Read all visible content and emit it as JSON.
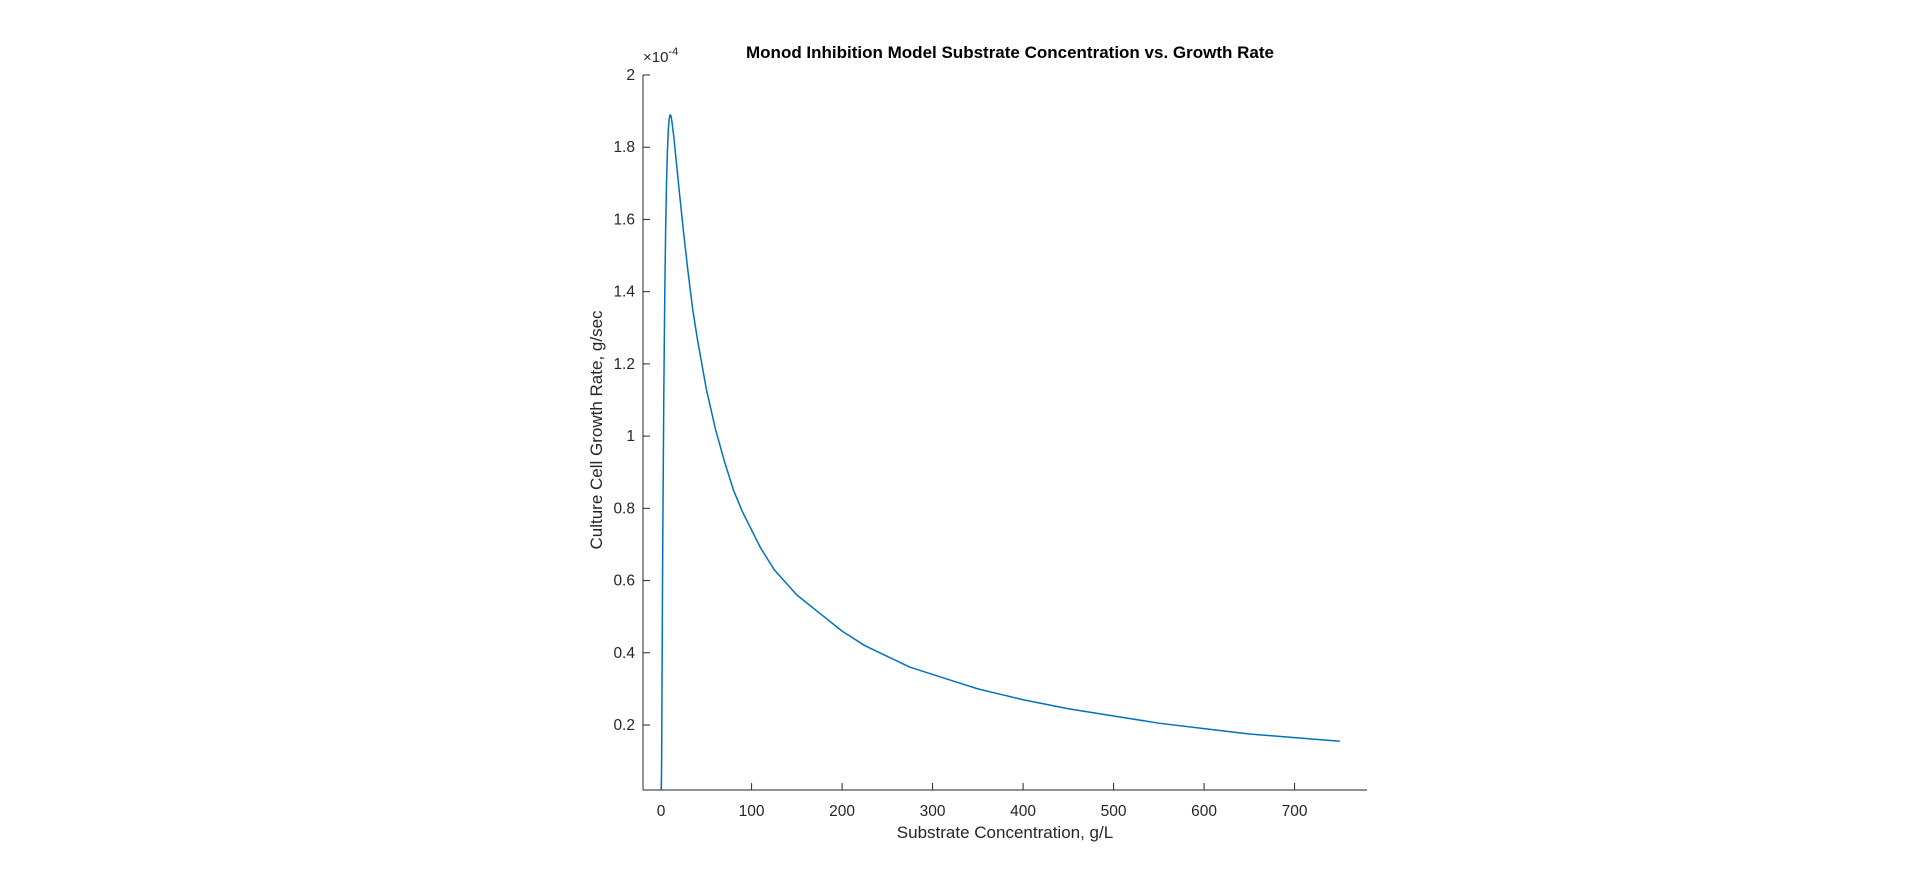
{
  "chart_data": {
    "type": "line",
    "title": "Monod Inhibition Model Substrate Concentration vs. Growth Rate",
    "xlabel": "Substrate Concentration, g/L",
    "ylabel": "Culture Cell Growth Rate, g/sec",
    "y_exponent_label": "×10",
    "y_exponent_power": "-4",
    "xlim": [
      -20,
      780
    ],
    "ylim": [
      0.02,
      2.0
    ],
    "xticks": [
      0,
      100,
      200,
      300,
      400,
      500,
      600,
      700
    ],
    "xtick_labels": [
      "0",
      "100",
      "200",
      "300",
      "400",
      "500",
      "600",
      "700"
    ],
    "yticks": [
      0.2,
      0.4,
      0.6,
      0.8,
      1.0,
      1.2,
      1.4,
      1.6,
      1.8,
      2.0
    ],
    "ytick_labels": [
      "0.2",
      "0.4",
      "0.6",
      "0.8",
      "1",
      "1.2",
      "1.4",
      "1.6",
      "1.8",
      "2"
    ],
    "grid": false,
    "series": [
      {
        "color": "#0072BD",
        "x": [
          0.3,
          0.6,
          1,
          1.5,
          2,
          3,
          4,
          5,
          6,
          7,
          8,
          9,
          10,
          11,
          12,
          14,
          16,
          18,
          20,
          25,
          30,
          35,
          40,
          45,
          50,
          60,
          70,
          80,
          90,
          100,
          110,
          125,
          150,
          175,
          200,
          225,
          250,
          275,
          300,
          325,
          350,
          375,
          400,
          450,
          500,
          550,
          600,
          650,
          700,
          750
        ],
        "y": [
          0.028,
          0.104,
          0.3,
          0.56,
          0.77,
          1.12,
          1.38,
          1.57,
          1.7,
          1.79,
          1.85,
          1.88,
          1.89,
          1.886,
          1.87,
          1.83,
          1.78,
          1.73,
          1.68,
          1.56,
          1.45,
          1.35,
          1.27,
          1.2,
          1.13,
          1.02,
          0.93,
          0.85,
          0.79,
          0.74,
          0.69,
          0.63,
          0.56,
          0.51,
          0.46,
          0.42,
          0.39,
          0.36,
          0.34,
          0.32,
          0.3,
          0.285,
          0.27,
          0.245,
          0.225,
          0.205,
          0.19,
          0.175,
          0.165,
          0.155
        ]
      }
    ]
  }
}
